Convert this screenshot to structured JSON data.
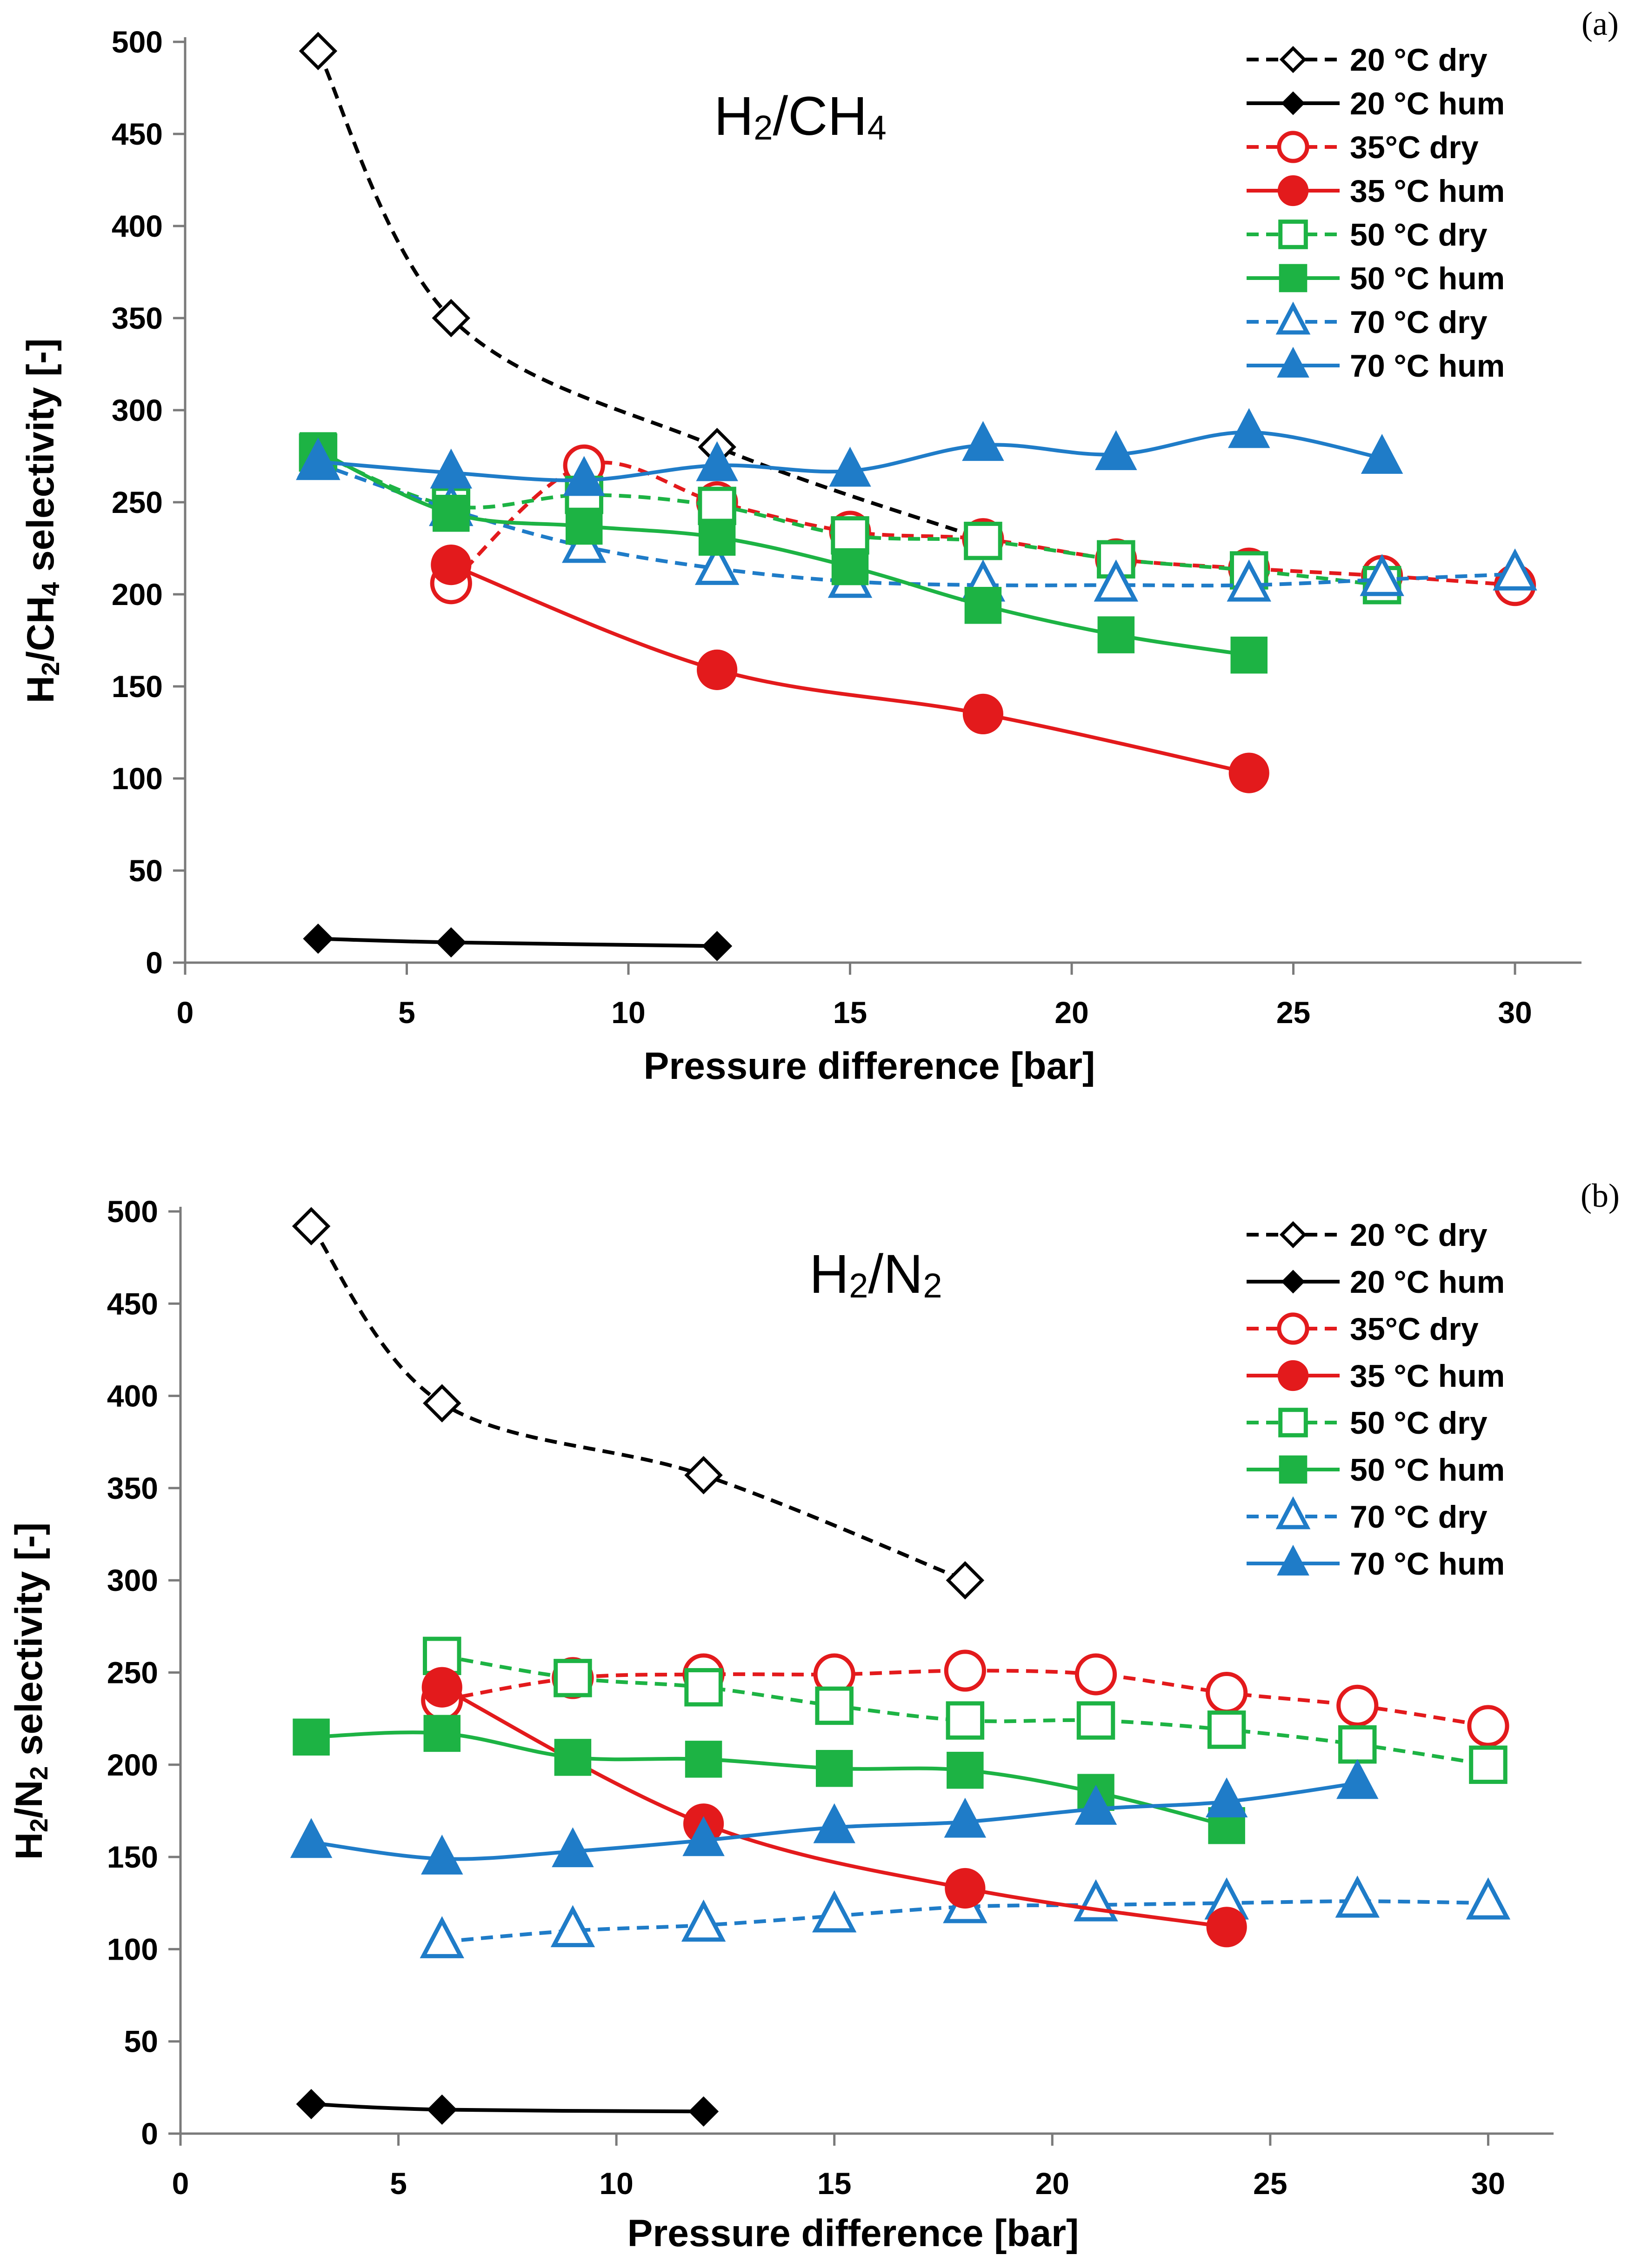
{
  "colors": {
    "black": "#000000",
    "red": "#e31a1c",
    "green": "#1db344",
    "blue": "#1f7cc8"
  },
  "chart_data": [
    {
      "type": "line",
      "panel_label": "(a)",
      "title": "H2/CH4",
      "title_main": "H",
      "title_sub1": "2",
      "title_mid": "/CH",
      "title_sub2": "4",
      "xlabel": "Pressure difference [bar]",
      "ylabel": "H2/CH4 selectivity [-]",
      "ylabel_parts": [
        "H",
        "2",
        "/CH",
        "4",
        " selectivity [-]"
      ],
      "xlim": [
        0,
        31.5
      ],
      "ylim": [
        0,
        500
      ],
      "xticks": [
        0,
        5,
        10,
        15,
        20,
        25,
        30
      ],
      "yticks": [
        0,
        50,
        100,
        150,
        200,
        250,
        300,
        350,
        400,
        450,
        500
      ],
      "legend_position": "top-right",
      "series": [
        {
          "name": "20 °C dry",
          "color": "black",
          "dashed": true,
          "marker": "diamond",
          "filled": false,
          "x": [
            3,
            6,
            12,
            18
          ],
          "y": [
            495,
            350,
            280,
            230
          ]
        },
        {
          "name": "20 °C hum",
          "color": "black",
          "dashed": false,
          "marker": "diamond",
          "filled": true,
          "x": [
            3,
            6,
            12
          ],
          "y": [
            13,
            11,
            9
          ]
        },
        {
          "name": "35°C dry",
          "color": "red",
          "dashed": true,
          "marker": "circle",
          "filled": false,
          "x": [
            6,
            9,
            12,
            15,
            18,
            21,
            24,
            27,
            30
          ],
          "y": [
            206,
            270,
            250,
            234,
            230,
            219,
            214,
            210,
            205
          ]
        },
        {
          "name": "35 °C hum",
          "color": "red",
          "dashed": false,
          "marker": "circle",
          "filled": true,
          "x": [
            6,
            12,
            18,
            24
          ],
          "y": [
            216,
            159,
            135,
            103
          ]
        },
        {
          "name": "50 °C dry",
          "color": "green",
          "dashed": true,
          "marker": "square",
          "filled": false,
          "x": [
            3,
            6,
            9,
            12,
            15,
            18,
            21,
            24,
            27
          ],
          "y": [
            277,
            248,
            254,
            248,
            232,
            229,
            219,
            213,
            205
          ]
        },
        {
          "name": "50 °C hum",
          "color": "green",
          "dashed": false,
          "marker": "square",
          "filled": true,
          "x": [
            3,
            6,
            9,
            12,
            15,
            18,
            21,
            24
          ],
          "y": [
            278,
            244,
            237,
            231,
            215,
            194,
            178,
            167
          ]
        },
        {
          "name": "70 °C dry",
          "color": "blue",
          "dashed": true,
          "marker": "triangle",
          "filled": false,
          "x": [
            3,
            6,
            9,
            12,
            15,
            18,
            21,
            24,
            27,
            30
          ],
          "y": [
            271,
            246,
            226,
            214,
            207,
            205,
            205,
            205,
            208,
            211
          ]
        },
        {
          "name": "70 °C hum",
          "color": "blue",
          "dashed": false,
          "marker": "triangle",
          "filled": true,
          "x": [
            3,
            6,
            9,
            12,
            15,
            18,
            21,
            24,
            27
          ],
          "y": [
            272,
            266,
            262,
            270,
            267,
            281,
            276,
            288,
            274
          ]
        }
      ]
    },
    {
      "type": "line",
      "panel_label": "(b)",
      "title": "H2/N2",
      "title_main": "H",
      "title_sub1": "2",
      "title_mid": "/N",
      "title_sub2": "2",
      "xlabel": "Pressure difference [bar]",
      "ylabel": "H2/N2 selectivity [-]",
      "ylabel_parts": [
        "H",
        "2",
        "/N",
        "2",
        " selectivity [-]"
      ],
      "xlim": [
        0,
        31.5
      ],
      "ylim": [
        0,
        500
      ],
      "xticks": [
        0,
        5,
        10,
        15,
        20,
        25,
        30
      ],
      "yticks": [
        0,
        50,
        100,
        150,
        200,
        250,
        300,
        350,
        400,
        450,
        500
      ],
      "legend_position": "top-right",
      "series": [
        {
          "name": "20 °C dry",
          "color": "black",
          "dashed": true,
          "marker": "diamond",
          "filled": false,
          "x": [
            3,
            6,
            12,
            18
          ],
          "y": [
            492,
            396,
            357,
            300
          ]
        },
        {
          "name": "20 °C hum",
          "color": "black",
          "dashed": false,
          "marker": "diamond",
          "filled": true,
          "x": [
            3,
            6,
            12
          ],
          "y": [
            16,
            13,
            12
          ]
        },
        {
          "name": "35°C dry",
          "color": "red",
          "dashed": true,
          "marker": "circle",
          "filled": false,
          "x": [
            6,
            9,
            12,
            15,
            18,
            21,
            24,
            27,
            30
          ],
          "y": [
            235,
            247,
            249,
            249,
            251,
            249,
            239,
            232,
            221
          ]
        },
        {
          "name": "35 °C hum",
          "color": "red",
          "dashed": false,
          "marker": "circle",
          "filled": true,
          "x": [
            6,
            12,
            18,
            24
          ],
          "y": [
            242,
            168,
            133,
            112
          ]
        },
        {
          "name": "50 °C dry",
          "color": "green",
          "dashed": true,
          "marker": "square",
          "filled": false,
          "x": [
            6,
            9,
            12,
            15,
            18,
            21,
            24,
            27,
            30
          ],
          "y": [
            259,
            247,
            242,
            232,
            224,
            224,
            219,
            211,
            200
          ]
        },
        {
          "name": "50 °C hum",
          "color": "green",
          "dashed": false,
          "marker": "square",
          "filled": true,
          "x": [
            3,
            6,
            9,
            12,
            15,
            18,
            21,
            24
          ],
          "y": [
            215,
            217,
            204,
            203,
            198,
            197,
            185,
            167
          ]
        },
        {
          "name": "70 °C dry",
          "color": "blue",
          "dashed": true,
          "marker": "triangle",
          "filled": false,
          "x": [
            6,
            9,
            12,
            15,
            18,
            21,
            24,
            27,
            30
          ],
          "y": [
            104,
            110,
            113,
            118,
            123,
            124,
            125,
            126,
            125
          ]
        },
        {
          "name": "70 °C hum",
          "color": "blue",
          "dashed": false,
          "marker": "triangle",
          "filled": true,
          "x": [
            3,
            6,
            9,
            12,
            15,
            18,
            21,
            24,
            27
          ],
          "y": [
            158,
            149,
            153,
            159,
            166,
            169,
            176,
            180,
            190
          ]
        }
      ]
    }
  ]
}
